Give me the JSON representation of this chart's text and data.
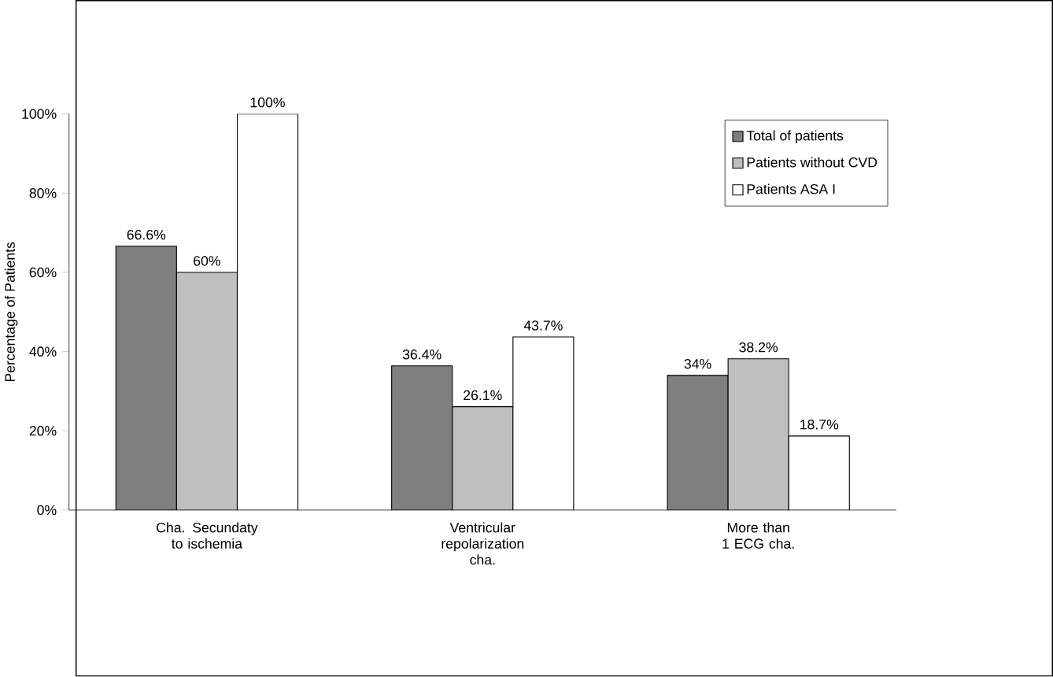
{
  "chart_data": {
    "type": "bar",
    "ylabel": "Percentage of Patients",
    "categories": [
      "Cha. Secundaty to ischemia",
      "Ventricular repolarization cha.",
      "More than 1 ECG cha."
    ],
    "series": [
      {
        "name": "Total of patients",
        "color": "#7f7f7f",
        "values": [
          66.6,
          36.4,
          34
        ],
        "value_labels": [
          "66.6%",
          "36.4%",
          "34%"
        ]
      },
      {
        "name": "Patients without CVD",
        "color": "#bfbfbf",
        "values": [
          60,
          26.1,
          38.2
        ],
        "value_labels": [
          "60%",
          "26.1%",
          "38.2%"
        ]
      },
      {
        "name": "Patients  ASA I",
        "color": "#ffffff",
        "values": [
          100,
          43.7,
          18.7
        ],
        "value_labels": [
          "100%",
          "43.7%",
          "18.7%"
        ]
      }
    ],
    "ylim": [
      0,
      100
    ],
    "yticks": [
      {
        "value": 0,
        "label": "0%"
      },
      {
        "value": 20,
        "label": "20%"
      },
      {
        "value": 40,
        "label": "40%"
      },
      {
        "value": 60,
        "label": "60%"
      },
      {
        "value": 80,
        "label": "80%"
      },
      {
        "value": 100,
        "label": "100%"
      }
    ],
    "grid": false,
    "legend": "top right"
  }
}
